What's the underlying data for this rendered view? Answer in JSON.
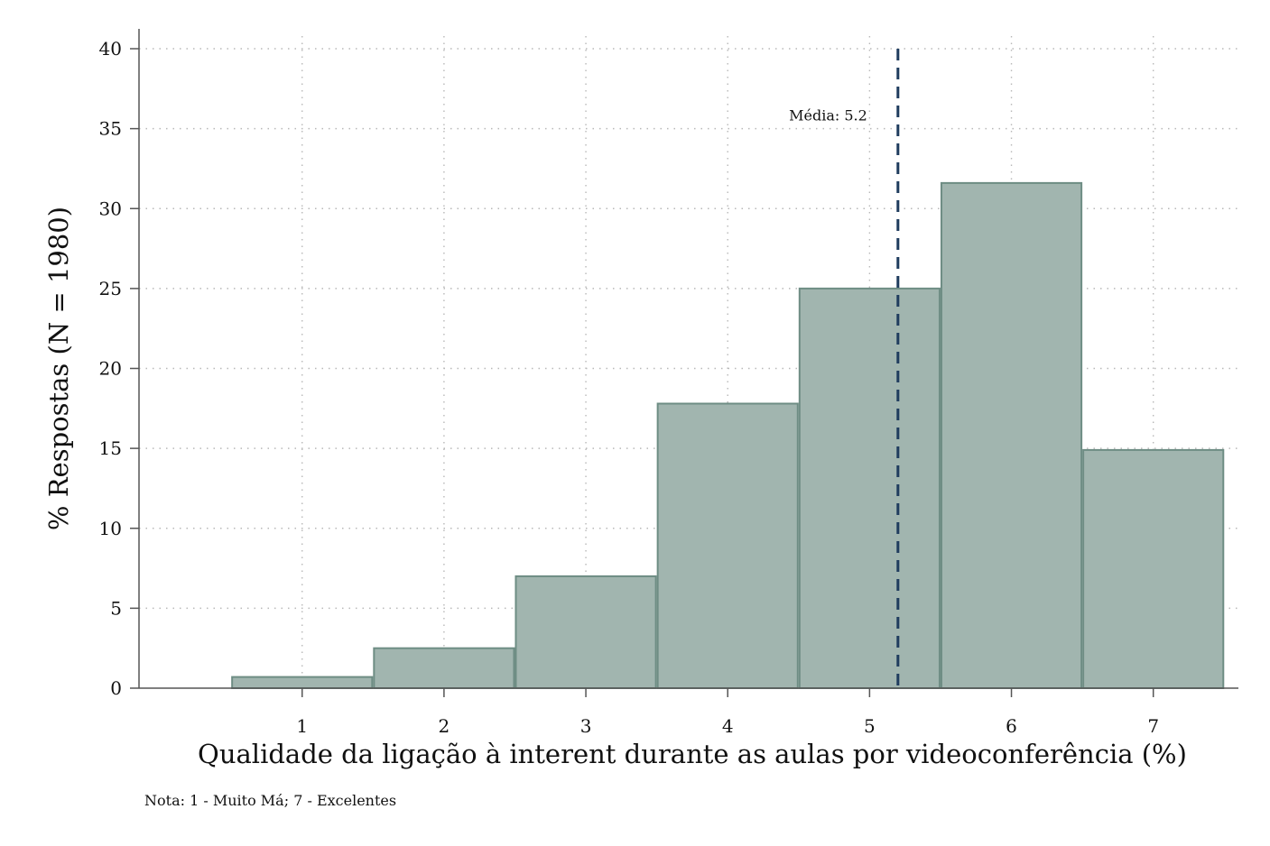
{
  "chart_data": {
    "type": "bar",
    "title": "",
    "xlabel": "Qualidade da ligação à interent durante as aulas por videoconferência (%)",
    "ylabel": "% Respostas (N = 1980)",
    "categories": [
      "1",
      "2",
      "3",
      "4",
      "5",
      "6",
      "7"
    ],
    "x": [
      1,
      2,
      3,
      4,
      5,
      6,
      7
    ],
    "values": [
      0.7,
      2.5,
      7.0,
      17.8,
      25.0,
      31.6,
      14.9
    ],
    "xlim": [
      -0.15,
      7.6
    ],
    "ylim": [
      0,
      40
    ],
    "yticks": [
      "0",
      "5",
      "10",
      "15",
      "20",
      "25",
      "30",
      "35",
      "40"
    ],
    "grid": true,
    "bar_color": "#a1b5af",
    "bar_edge_color": "#6e8d84",
    "mean": {
      "value": 5.2,
      "label": "Média: 5.2",
      "color": "#1f3c5e"
    },
    "note": "Nota: 1 - Muito Má; 7 - Excelentes"
  }
}
